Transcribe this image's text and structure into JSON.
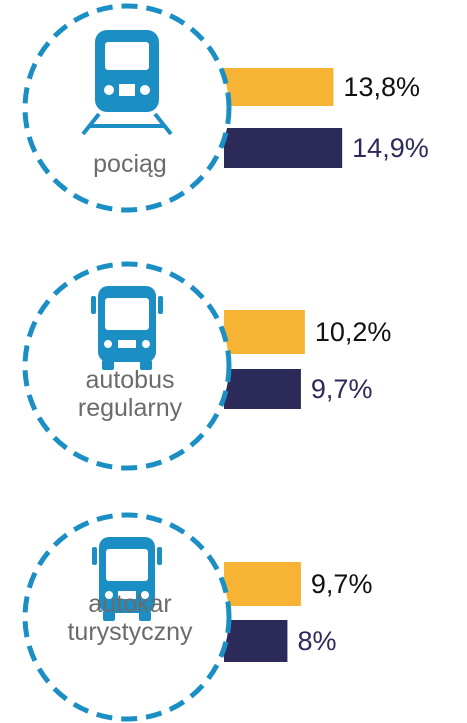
{
  "chart_data": {
    "type": "bar",
    "categories": [
      "pociąg",
      "autobus regularny",
      "autokar turystyczny"
    ],
    "series": [
      {
        "color": "#f6b334",
        "values": [
          13.8,
          10.2,
          9.7
        ],
        "value_labels": [
          "13,8%",
          "10,2%",
          "9,7%"
        ]
      },
      {
        "color": "#2c2a58",
        "values": [
          14.9,
          9.7,
          8
        ],
        "value_labels": [
          "14,9%",
          "9,7%",
          "8%"
        ]
      }
    ]
  }
}
